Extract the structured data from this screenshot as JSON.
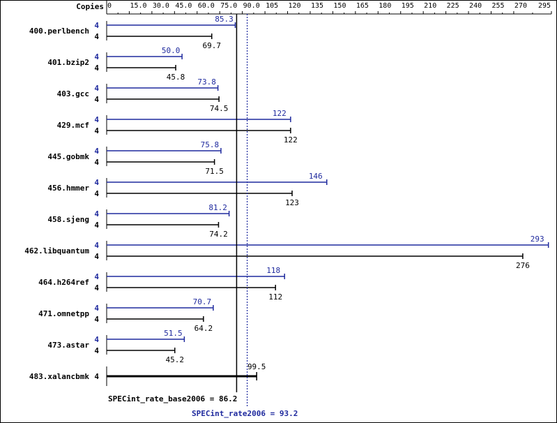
{
  "chart_data": {
    "type": "bar",
    "axis_label": "Copies",
    "xlim": [
      0,
      295
    ],
    "ticks": [
      "0",
      "15.0",
      "30.0",
      "45.0",
      "60.0",
      "75.0",
      "90.0",
      "105",
      "120",
      "135",
      "150",
      "165",
      "180",
      "195",
      "210",
      "225",
      "240",
      "255",
      "270",
      "295"
    ],
    "tick_values": [
      0,
      15,
      30,
      45,
      60,
      75,
      90,
      105,
      120,
      135,
      150,
      165,
      180,
      195,
      210,
      225,
      240,
      255,
      270,
      295
    ],
    "benchmarks": [
      {
        "name": "400.perlbench",
        "peak_copies": "4",
        "peak": 85.3,
        "peak_label": "85.3",
        "base_copies": "4",
        "base": 69.7,
        "base_label": "69.7"
      },
      {
        "name": "401.bzip2",
        "peak_copies": "4",
        "peak": 50.0,
        "peak_label": "50.0",
        "base_copies": "4",
        "base": 45.8,
        "base_label": "45.8"
      },
      {
        "name": "403.gcc",
        "peak_copies": "4",
        "peak": 73.8,
        "peak_label": "73.8",
        "base_copies": "4",
        "base": 74.5,
        "base_label": "74.5"
      },
      {
        "name": "429.mcf",
        "peak_copies": "4",
        "peak": 122,
        "peak_label": "122",
        "base_copies": "4",
        "base": 122,
        "base_label": "122"
      },
      {
        "name": "445.gobmk",
        "peak_copies": "4",
        "peak": 75.8,
        "peak_label": "75.8",
        "base_copies": "4",
        "base": 71.5,
        "base_label": "71.5"
      },
      {
        "name": "456.hmmer",
        "peak_copies": "4",
        "peak": 146,
        "peak_label": "146",
        "base_copies": "4",
        "base": 123,
        "base_label": "123"
      },
      {
        "name": "458.sjeng",
        "peak_copies": "4",
        "peak": 81.2,
        "peak_label": "81.2",
        "base_copies": "4",
        "base": 74.2,
        "base_label": "74.2"
      },
      {
        "name": "462.libquantum",
        "peak_copies": "4",
        "peak": 293,
        "peak_label": "293",
        "base_copies": "4",
        "base": 276,
        "base_label": "276"
      },
      {
        "name": "464.h264ref",
        "peak_copies": "4",
        "peak": 118,
        "peak_label": "118",
        "base_copies": "4",
        "base": 112,
        "base_label": "112"
      },
      {
        "name": "471.omnetpp",
        "peak_copies": "4",
        "peak": 70.7,
        "peak_label": "70.7",
        "base_copies": "4",
        "base": 64.2,
        "base_label": "64.2"
      },
      {
        "name": "473.astar",
        "peak_copies": "4",
        "peak": 51.5,
        "peak_label": "51.5",
        "base_copies": "4",
        "base": 45.2,
        "base_label": "45.2"
      },
      {
        "name": "483.xalancbmk",
        "single": true,
        "copies": "4",
        "value": 99.5,
        "value_label": "99.5"
      }
    ],
    "base_mean": 86.2,
    "base_mean_label": "SPECint_rate_base2006 = 86.2",
    "peak_mean": 93.2,
    "peak_mean_label": "SPECint_rate2006 = 93.2",
    "colors": {
      "peak": "#1f2a9e",
      "base": "#000000",
      "grid": "#000000"
    }
  }
}
